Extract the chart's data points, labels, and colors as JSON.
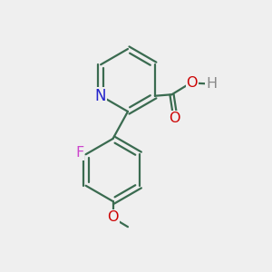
{
  "background_color": "#efefef",
  "bond_color": "#3a6b50",
  "N_color": "#2222cc",
  "O_color": "#cc0000",
  "F_color": "#cc44cc",
  "H_color": "#888888",
  "line_width": 1.6,
  "dbo": 0.1,
  "figsize": [
    3.0,
    3.0
  ],
  "dpi": 100,
  "xlim": [
    0,
    10
  ],
  "ylim": [
    0,
    10
  ],
  "label_fontsize": 11.5
}
